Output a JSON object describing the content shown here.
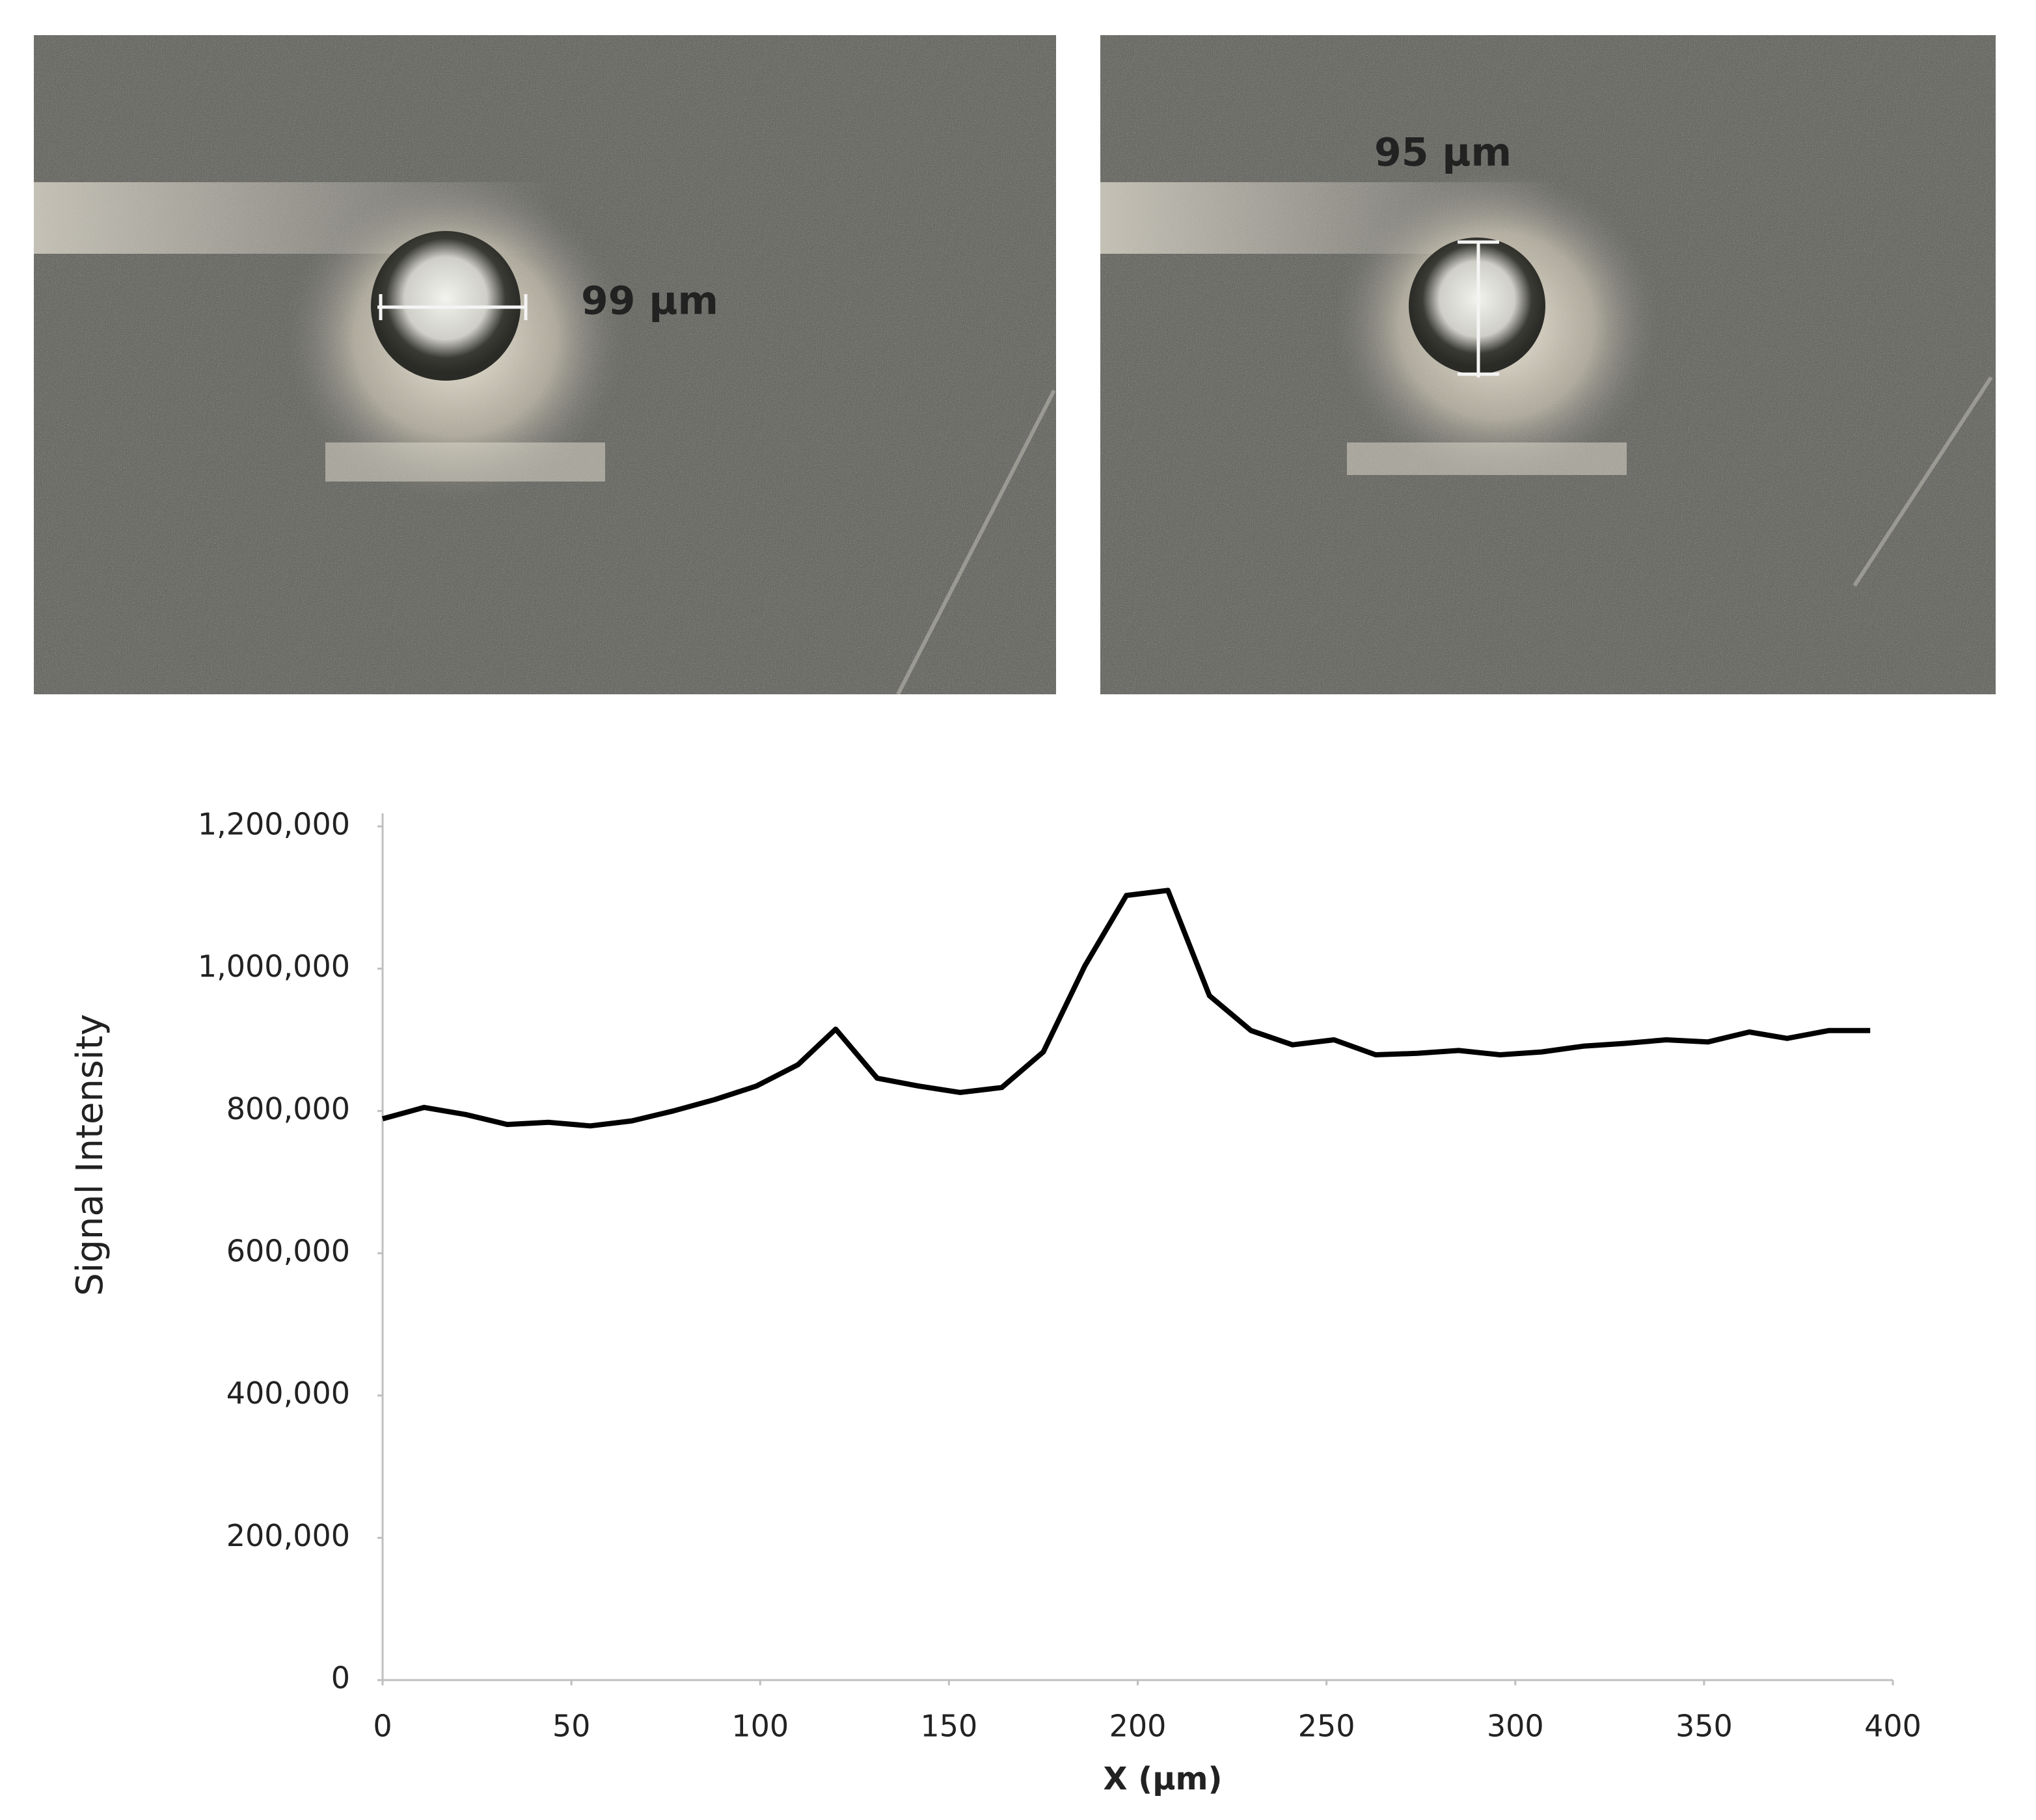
{
  "panels": [
    {
      "label": "99 µm"
    },
    {
      "label": "95 µm"
    }
  ],
  "chart_data": {
    "type": "line",
    "ylabel": "Signal Intensity",
    "xlabel": "X (µm)",
    "x": [
      0,
      11,
      22,
      33,
      44,
      55,
      66,
      77,
      88,
      99,
      110,
      120,
      131,
      142,
      153,
      164,
      175,
      186,
      197,
      208,
      219,
      230,
      241,
      252,
      263,
      274,
      285,
      296,
      307,
      318,
      329,
      340,
      351,
      362,
      372,
      383,
      394
    ],
    "values": [
      789000,
      805000,
      795000,
      781000,
      784000,
      779000,
      786000,
      800000,
      816000,
      835000,
      865000,
      915000,
      846000,
      835000,
      826000,
      833000,
      883000,
      1004000,
      1103000,
      1110000,
      962000,
      913000,
      893000,
      900000,
      879000,
      881000,
      885000,
      879000,
      883000,
      891000,
      895000,
      900000,
      897000,
      911000,
      902000,
      913000,
      913000
    ],
    "color": "#000000",
    "xlim": [
      0,
      400
    ],
    "xticks": [
      0,
      50,
      100,
      150,
      200,
      250,
      300,
      350,
      400
    ],
    "ylim": [
      0,
      1200000
    ],
    "yticks": [
      0,
      {
        "value": 200000,
        "label": "200,000"
      },
      {
        "value": 400000,
        "label": "400,000"
      },
      {
        "value": 600000,
        "label": "600,000"
      },
      {
        "value": 800000,
        "label": "800,000"
      },
      {
        "value": 1000000,
        "label": "1,000,000"
      },
      {
        "value": 1200000,
        "label": "1,200,000"
      }
    ],
    "grid": false
  }
}
